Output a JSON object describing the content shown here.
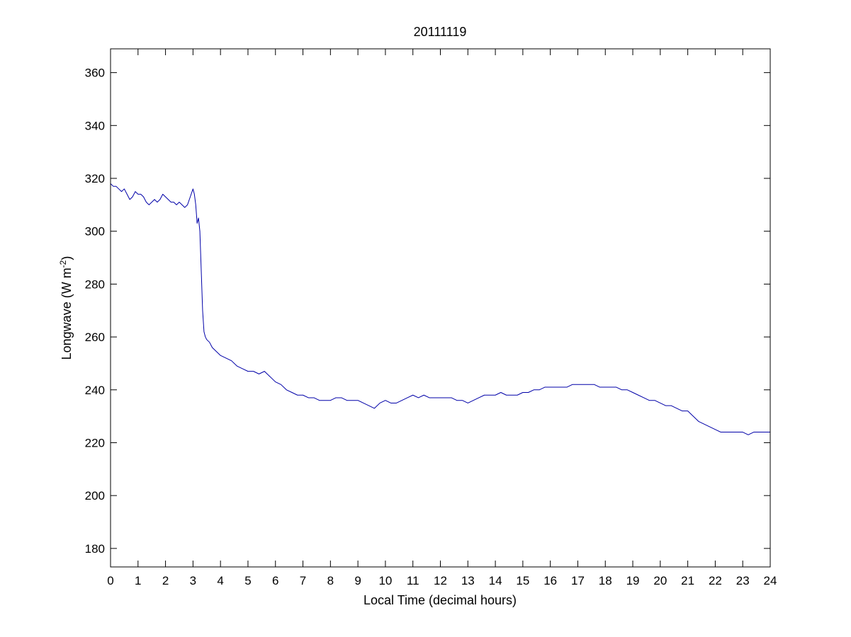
{
  "chart_data": {
    "type": "line",
    "title": "20111119",
    "xlabel": "Local Time (decimal hours)",
    "ylabel": {
      "main": "Longwave (W m",
      "superscript": "-2",
      "close": ")"
    },
    "xlim": [
      0,
      24
    ],
    "ylim": [
      173,
      369
    ],
    "xticks": [
      0,
      1,
      2,
      3,
      4,
      5,
      6,
      7,
      8,
      9,
      10,
      11,
      12,
      13,
      14,
      15,
      16,
      17,
      18,
      19,
      20,
      21,
      22,
      23,
      24
    ],
    "yticks": [
      180,
      200,
      220,
      240,
      260,
      280,
      300,
      320,
      340,
      360
    ],
    "grid": false,
    "line_color": "#0000a8",
    "series": [
      {
        "x": [
          0,
          0.1,
          0.2,
          0.3,
          0.4,
          0.5,
          0.6,
          0.7,
          0.8,
          0.9,
          1.0,
          1.1,
          1.2,
          1.3,
          1.4,
          1.5,
          1.6,
          1.7,
          1.8,
          1.9,
          2.0,
          2.1,
          2.2,
          2.3,
          2.4,
          2.5,
          2.6,
          2.7,
          2.8,
          2.9,
          3.0,
          3.05,
          3.1,
          3.15,
          3.2,
          3.25,
          3.3,
          3.35,
          3.4,
          3.45,
          3.5,
          3.6,
          3.7,
          3.8,
          3.9,
          4.0,
          4.2,
          4.4,
          4.6,
          4.8,
          5.0,
          5.2,
          5.4,
          5.6,
          5.8,
          6.0,
          6.2,
          6.4,
          6.6,
          6.8,
          7.0,
          7.2,
          7.4,
          7.6,
          7.8,
          8.0,
          8.2,
          8.4,
          8.6,
          8.8,
          9.0,
          9.2,
          9.4,
          9.6,
          9.8,
          10.0,
          10.2,
          10.4,
          10.6,
          10.8,
          11.0,
          11.2,
          11.4,
          11.6,
          11.8,
          12.0,
          12.2,
          12.4,
          12.6,
          12.8,
          13.0,
          13.2,
          13.4,
          13.6,
          13.8,
          14.0,
          14.2,
          14.4,
          14.6,
          14.8,
          15.0,
          15.2,
          15.4,
          15.6,
          15.8,
          16.0,
          16.2,
          16.4,
          16.6,
          16.8,
          17.0,
          17.2,
          17.4,
          17.6,
          17.8,
          18.0,
          18.2,
          18.4,
          18.6,
          18.8,
          19.0,
          19.2,
          19.4,
          19.6,
          19.8,
          20.0,
          20.2,
          20.4,
          20.6,
          20.8,
          21.0,
          21.2,
          21.4,
          21.6,
          21.8,
          22.0,
          22.2,
          22.4,
          22.6,
          22.8,
          23.0,
          23.2,
          23.4,
          23.6,
          23.8,
          24.0
        ],
        "y": [
          318,
          317,
          317,
          316,
          315,
          316,
          314,
          312,
          313,
          315,
          314,
          314,
          313,
          311,
          310,
          311,
          312,
          311,
          312,
          314,
          313,
          312,
          311,
          311,
          310,
          311,
          310,
          309,
          310,
          313,
          316,
          314,
          310,
          303,
          305,
          300,
          285,
          270,
          262,
          260,
          259,
          258,
          256,
          255,
          254,
          253,
          252,
          251,
          249,
          248,
          247,
          247,
          246,
          247,
          245,
          243,
          242,
          240,
          239,
          238,
          238,
          237,
          237,
          236,
          236,
          236,
          237,
          237,
          236,
          236,
          236,
          235,
          234,
          233,
          235,
          236,
          235,
          235,
          236,
          237,
          238,
          237,
          238,
          237,
          237,
          237,
          237,
          237,
          236,
          236,
          235,
          236,
          237,
          238,
          238,
          238,
          239,
          238,
          238,
          238,
          239,
          239,
          240,
          240,
          241,
          241,
          241,
          241,
          241,
          242,
          242,
          242,
          242,
          242,
          241,
          241,
          241,
          241,
          240,
          240,
          239,
          238,
          237,
          236,
          236,
          235,
          234,
          234,
          233,
          232,
          232,
          230,
          228,
          227,
          226,
          225,
          224,
          224,
          224,
          224,
          224,
          223,
          224,
          224,
          224,
          224
        ]
      }
    ]
  }
}
